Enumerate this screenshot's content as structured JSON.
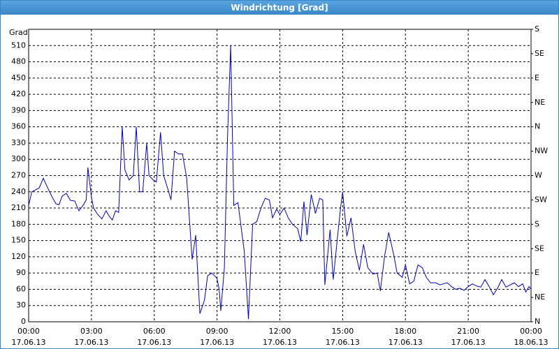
{
  "window_title": "Windrichtung [Grad]",
  "chart_data": {
    "type": "line",
    "ylabel": "Grad",
    "xlim": [
      0,
      24
    ],
    "xticks": [
      {
        "value": 0,
        "label": "00:00"
      },
      {
        "value": 3,
        "label": "03:00"
      },
      {
        "value": 6,
        "label": "06:00"
      },
      {
        "value": 9,
        "label": "09:00"
      },
      {
        "value": 12,
        "label": "12:00"
      },
      {
        "value": 15,
        "label": "15:00"
      },
      {
        "value": 18,
        "label": "18:00"
      },
      {
        "value": 21,
        "label": "21:00"
      },
      {
        "value": 24,
        "label": "00:00"
      }
    ],
    "xtick_dates": [
      "17.06.13",
      "17.06.13",
      "17.06.13",
      "17.06.13",
      "17.06.13",
      "17.06.13",
      "17.06.13",
      "17.06.13",
      "18.06.13"
    ],
    "ylim": [
      0,
      540
    ],
    "yticks": [
      0,
      30,
      60,
      90,
      120,
      150,
      180,
      210,
      240,
      270,
      300,
      330,
      360,
      390,
      420,
      450,
      480,
      510
    ],
    "y2lim": [
      0,
      540
    ],
    "y2ticks": [
      {
        "value": 0,
        "label": "N"
      },
      {
        "value": 45,
        "label": "NE"
      },
      {
        "value": 90,
        "label": "E"
      },
      {
        "value": 135,
        "label": "SE"
      },
      {
        "value": 180,
        "label": "S"
      },
      {
        "value": 225,
        "label": "SW"
      },
      {
        "value": 270,
        "label": "W"
      },
      {
        "value": 315,
        "label": "NW"
      },
      {
        "value": 360,
        "label": "N"
      },
      {
        "value": 405,
        "label": "NE"
      },
      {
        "value": 450,
        "label": "E"
      },
      {
        "value": 495,
        "label": "SE"
      },
      {
        "value": 540,
        "label": "S"
      }
    ],
    "grid": true,
    "color": "#0000c0",
    "x": [
      0,
      0.15,
      0.3,
      0.5,
      0.7,
      0.9,
      1.1,
      1.3,
      1.45,
      1.6,
      1.8,
      2.0,
      2.2,
      2.4,
      2.6,
      2.75,
      2.83,
      3.0,
      3.1,
      3.3,
      3.5,
      3.7,
      3.85,
      4.0,
      4.15,
      4.3,
      4.47,
      4.6,
      4.8,
      5.0,
      5.14,
      5.3,
      5.45,
      5.64,
      5.75,
      5.95,
      6.1,
      6.3,
      6.45,
      6.65,
      6.8,
      6.97,
      7.15,
      7.35,
      7.55,
      7.81,
      7.98,
      8.18,
      8.4,
      8.55,
      8.75,
      9.0,
      9.1,
      9.18,
      9.35,
      9.5,
      9.65,
      9.8,
      10.0,
      10.3,
      10.5,
      10.7,
      10.9,
      11.1,
      11.3,
      11.5,
      11.65,
      11.85,
      12.0,
      12.2,
      12.4,
      12.6,
      12.85,
      13.0,
      13.15,
      13.3,
      13.5,
      13.7,
      13.9,
      14.05,
      14.15,
      14.4,
      14.55,
      14.75,
      14.9,
      15.0,
      15.2,
      15.4,
      15.6,
      15.8,
      16.0,
      16.2,
      16.45,
      16.65,
      16.8,
      17.0,
      17.2,
      17.45,
      17.6,
      17.85,
      18.0,
      18.2,
      18.4,
      18.6,
      18.8,
      19.0,
      19.2,
      19.45,
      19.65,
      19.8,
      20.0,
      20.2,
      20.4,
      20.6,
      20.8,
      21.0,
      21.2,
      21.4,
      21.6,
      21.8,
      22.0,
      22.2,
      22.4,
      22.6,
      22.8,
      23.0,
      23.2,
      23.4,
      23.6,
      23.75,
      23.9,
      24.0
    ],
    "values": [
      215,
      240,
      243,
      247,
      265,
      248,
      232,
      218,
      216,
      232,
      237,
      224,
      223,
      205,
      215,
      225,
      285,
      230,
      210,
      198,
      190,
      205,
      195,
      188,
      205,
      202,
      360,
      280,
      262,
      270,
      360,
      240,
      240,
      330,
      270,
      262,
      258,
      350,
      270,
      245,
      225,
      315,
      310,
      310,
      265,
      115,
      160,
      15,
      40,
      85,
      90,
      80,
      60,
      20,
      100,
      340,
      510,
      215,
      220,
      130,
      5,
      180,
      185,
      210,
      228,
      225,
      192,
      208,
      198,
      210,
      192,
      180,
      172,
      148,
      222,
      160,
      235,
      200,
      228,
      225,
      68,
      170,
      78,
      155,
      210,
      240,
      158,
      192,
      130,
      95,
      143,
      100,
      88,
      90,
      57,
      120,
      165,
      122,
      90,
      82,
      105,
      70,
      75,
      105,
      100,
      82,
      72,
      72,
      68,
      70,
      72,
      65,
      60,
      62,
      58,
      65,
      70,
      66,
      64,
      78,
      65,
      50,
      62,
      78,
      64,
      68,
      72,
      65,
      70,
      55,
      65,
      60
    ]
  }
}
